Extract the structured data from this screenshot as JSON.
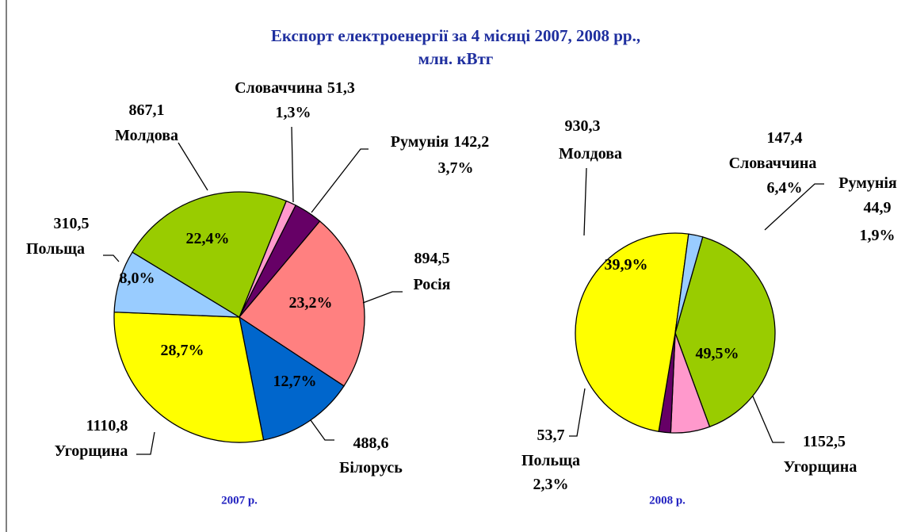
{
  "title": [
    "Експорт електроенергії за 4 місяці 2007, 2008 рр.,",
    "млн. кВтг"
  ],
  "chart_data": [
    {
      "type": "pie",
      "title": "2007 р.",
      "categories": [
        "Словаччина",
        "Румунія",
        "Росія",
        "Білорусь",
        "Угорщина",
        "Польща",
        "Молдова"
      ],
      "values": [
        51.3,
        142.2,
        894.5,
        488.6,
        1110.8,
        310.5,
        867.1
      ],
      "value_labels": [
        "51,3",
        "142,2",
        "894,5",
        "488,6",
        "1110,8",
        "310,5",
        "867,1"
      ],
      "percent_labels": [
        "1,3%",
        "3,7%",
        "23,2%",
        "12,7%",
        "28,7%",
        "8,0%",
        "22,4%"
      ],
      "colors": [
        "#ff99cc",
        "#660066",
        "#ff8080",
        "#0066cc",
        "#ffff00",
        "#99ccff",
        "#99cc00"
      ]
    },
    {
      "type": "pie",
      "title": "2008 р.",
      "categories": [
        "Молдова",
        "Словаччина",
        "Румунія",
        "Угорщина",
        "Польща"
      ],
      "values": [
        930.3,
        147.4,
        44.9,
        1152.5,
        53.7
      ],
      "value_labels": [
        "930,3",
        "147,4",
        "44,9",
        "1152,5",
        "53,7"
      ],
      "percent_labels": [
        "39,9%",
        "6,4%",
        "1,9%",
        "49,5%",
        "2,3%"
      ],
      "colors": [
        "#99cc00",
        "#ff99cc",
        "#660066",
        "#ffff00",
        "#99ccff"
      ]
    }
  ]
}
